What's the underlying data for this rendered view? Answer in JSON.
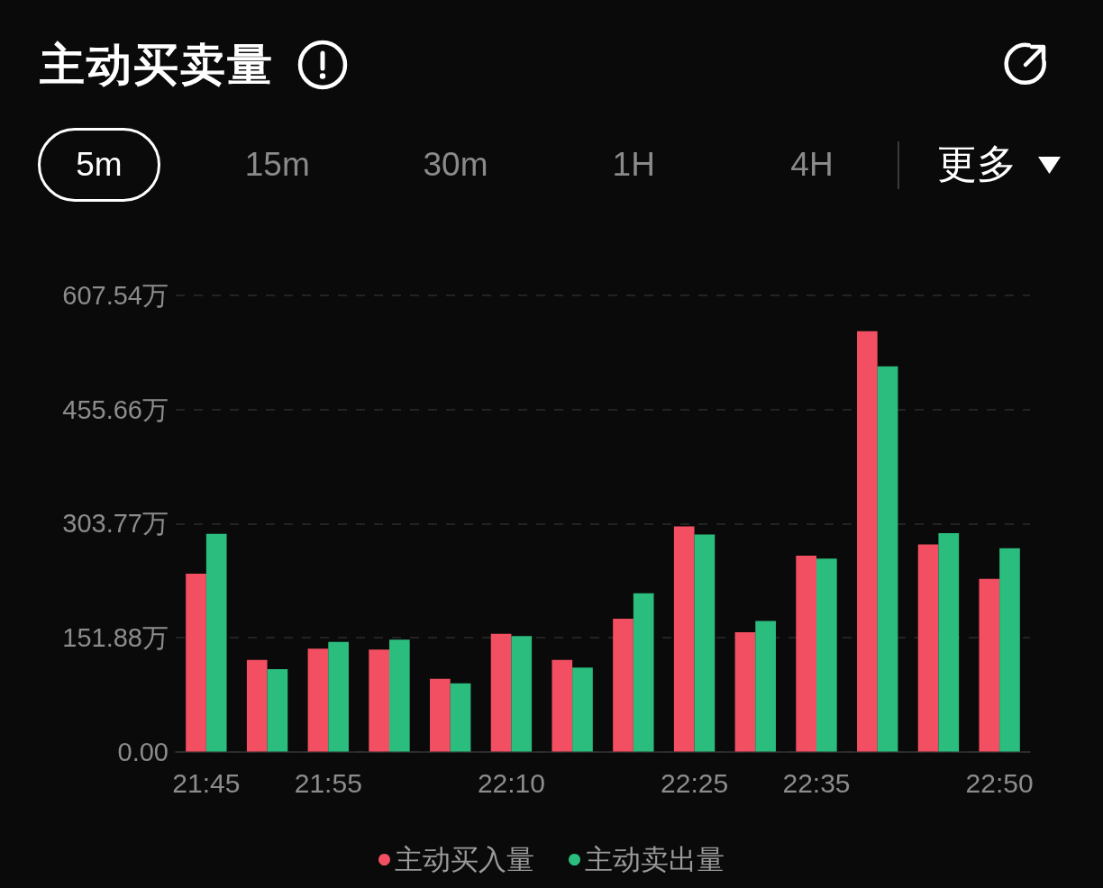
{
  "chart_data": {
    "type": "bar",
    "title": "主动买卖量",
    "annotations": [
      "5m",
      "15m",
      "30m",
      "1H",
      "4H",
      "更多"
    ],
    "categories": [
      "21:45",
      null,
      "21:55",
      null,
      null,
      "22:10",
      null,
      null,
      "22:25",
      null,
      "22:35",
      null,
      null,
      "22:50"
    ],
    "ylim": [
      0,
      607.54
    ],
    "yticks": [
      {
        "value": 0,
        "label": "0.00"
      },
      {
        "value": 151.88,
        "label": "151.88万"
      },
      {
        "value": 303.77,
        "label": "303.77万"
      },
      {
        "value": 455.66,
        "label": "455.66万"
      },
      {
        "value": 607.54,
        "label": "607.54万"
      }
    ],
    "series": [
      {
        "name": "主动买入量",
        "color": "#f24f62",
        "values": [
          237,
          122,
          137,
          136,
          97,
          157,
          122,
          177,
          300,
          159,
          261,
          560,
          276,
          230
        ]
      },
      {
        "name": "主动卖出量",
        "color": "#2bbd7e",
        "values": [
          290,
          110,
          146,
          149,
          91,
          154,
          112,
          211,
          289,
          174,
          257,
          513,
          291,
          271
        ]
      }
    ],
    "grid": "y",
    "legend": "bottom"
  }
}
